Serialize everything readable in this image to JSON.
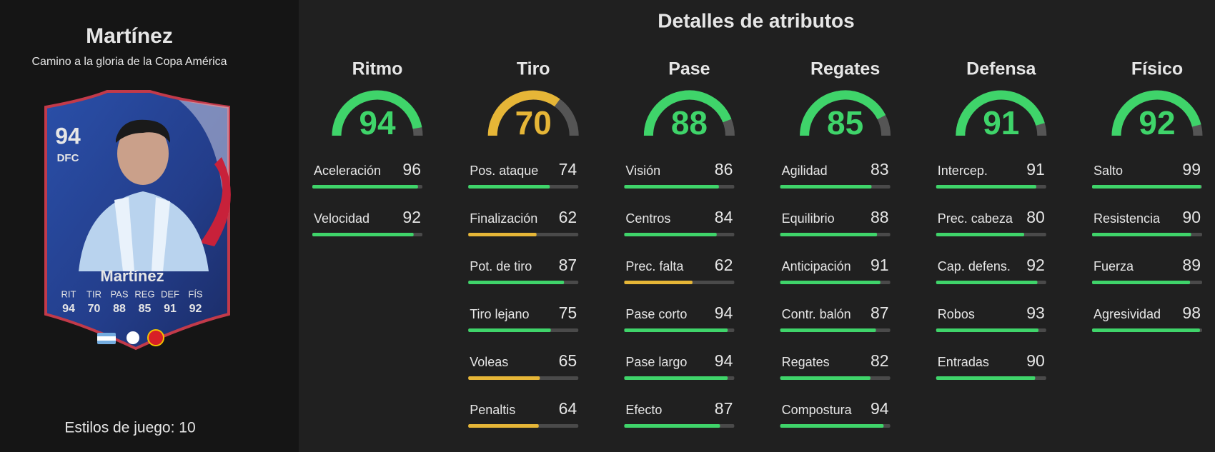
{
  "player": {
    "name": "Martínez",
    "subtitle": "Camino a la gloria de la Copa América",
    "playstyles": "Estilos de juego: 10"
  },
  "card": {
    "rating": 94,
    "position": "DFC",
    "name": "Martínez",
    "stats": [
      {
        "label": "RIT",
        "value": 94
      },
      {
        "label": "TIR",
        "value": 70
      },
      {
        "label": "PAS",
        "value": 88
      },
      {
        "label": "REG",
        "value": 85
      },
      {
        "label": "DEF",
        "value": 91
      },
      {
        "label": "FÍS",
        "value": 92
      }
    ]
  },
  "title": "Detalles de atributos",
  "range": [
    0,
    100
  ],
  "categories": [
    {
      "name": "Ritmo",
      "value": 94,
      "color": "#3fd46a",
      "attributes": [
        {
          "name": "Aceleración",
          "value": 96,
          "color": "#3fd46a"
        },
        {
          "name": "Velocidad",
          "value": 92,
          "color": "#3fd46a"
        }
      ]
    },
    {
      "name": "Tiro",
      "value": 70,
      "color": "#e6b637",
      "attributes": [
        {
          "name": "Pos. ataque",
          "value": 74,
          "color": "#3fd46a"
        },
        {
          "name": "Finalización",
          "value": 62,
          "color": "#e6b637"
        },
        {
          "name": "Pot. de tiro",
          "value": 87,
          "color": "#3fd46a"
        },
        {
          "name": "Tiro lejano",
          "value": 75,
          "color": "#3fd46a"
        },
        {
          "name": "Voleas",
          "value": 65,
          "color": "#e6b637"
        },
        {
          "name": "Penaltis",
          "value": 64,
          "color": "#e6b637"
        }
      ]
    },
    {
      "name": "Pase",
      "value": 88,
      "color": "#3fd46a",
      "attributes": [
        {
          "name": "Visión",
          "value": 86,
          "color": "#3fd46a"
        },
        {
          "name": "Centros",
          "value": 84,
          "color": "#3fd46a"
        },
        {
          "name": "Prec. falta",
          "value": 62,
          "color": "#e6b637"
        },
        {
          "name": "Pase corto",
          "value": 94,
          "color": "#3fd46a"
        },
        {
          "name": "Pase largo",
          "value": 94,
          "color": "#3fd46a"
        },
        {
          "name": "Efecto",
          "value": 87,
          "color": "#3fd46a"
        }
      ]
    },
    {
      "name": "Regates",
      "value": 85,
      "color": "#3fd46a",
      "attributes": [
        {
          "name": "Agilidad",
          "value": 83,
          "color": "#3fd46a"
        },
        {
          "name": "Equilibrio",
          "value": 88,
          "color": "#3fd46a"
        },
        {
          "name": "Anticipación",
          "value": 91,
          "color": "#3fd46a"
        },
        {
          "name": "Contr. balón",
          "value": 87,
          "color": "#3fd46a"
        },
        {
          "name": "Regates",
          "value": 82,
          "color": "#3fd46a"
        },
        {
          "name": "Compostura",
          "value": 94,
          "color": "#3fd46a"
        }
      ]
    },
    {
      "name": "Defensa",
      "value": 91,
      "color": "#3fd46a",
      "attributes": [
        {
          "name": "Intercep.",
          "value": 91,
          "color": "#3fd46a"
        },
        {
          "name": "Prec. cabeza",
          "value": 80,
          "color": "#3fd46a"
        },
        {
          "name": "Cap. defens.",
          "value": 92,
          "color": "#3fd46a"
        },
        {
          "name": "Robos",
          "value": 93,
          "color": "#3fd46a"
        },
        {
          "name": "Entradas",
          "value": 90,
          "color": "#3fd46a"
        }
      ]
    },
    {
      "name": "Físico",
      "value": 92,
      "color": "#3fd46a",
      "attributes": [
        {
          "name": "Salto",
          "value": 99,
          "color": "#3fd46a"
        },
        {
          "name": "Resistencia",
          "value": 90,
          "color": "#3fd46a"
        },
        {
          "name": "Fuerza",
          "value": 89,
          "color": "#3fd46a"
        },
        {
          "name": "Agresividad",
          "value": 98,
          "color": "#3fd46a"
        }
      ]
    }
  ]
}
